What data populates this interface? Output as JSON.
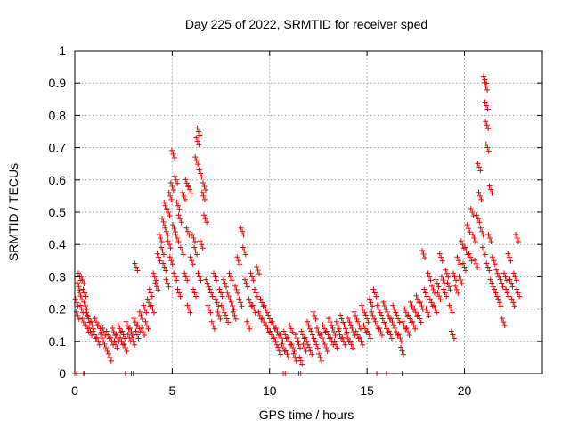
{
  "chart_data": {
    "type": "scatter",
    "title": "Day 225 of 2022, SRMTID for receiver sped",
    "xlabel": "GPS time / hours",
    "ylabel": "SRMTID / TECUs",
    "xlim": [
      0,
      24
    ],
    "ylim": [
      0,
      1
    ],
    "xticks": [
      0,
      5,
      10,
      15,
      20
    ],
    "xtick_labels": [
      "0",
      "5",
      "10",
      "15",
      "20"
    ],
    "yticks": [
      0,
      0.1,
      0.2,
      0.3,
      0.4,
      0.5,
      0.6,
      0.7,
      0.8,
      0.9,
      1
    ],
    "ytick_labels": [
      "0",
      "0.1",
      "0.2",
      "0.3",
      "0.4",
      "0.5",
      "0.6",
      "0.7",
      "0.8",
      "0.9",
      "1"
    ],
    "grid": true,
    "marker": "+",
    "color": "#e00000",
    "series": [
      {
        "name": "SRMTID",
        "points": [
          [
            0.1,
            0.22
          ],
          [
            0.15,
            0.18
          ],
          [
            0.2,
            0.27
          ],
          [
            0.25,
            0.3
          ],
          [
            0.3,
            0.24
          ],
          [
            0.35,
            0.2
          ],
          [
            0.4,
            0.29
          ],
          [
            0.45,
            0.16
          ],
          [
            0.5,
            0.25
          ],
          [
            0.55,
            0.21
          ],
          [
            0.6,
            0.19
          ],
          [
            0.65,
            0.14
          ],
          [
            0.7,
            0.17
          ],
          [
            0.8,
            0.13
          ],
          [
            0.9,
            0.15
          ],
          [
            1.0,
            0.12
          ],
          [
            1.1,
            0.16
          ],
          [
            1.2,
            0.1
          ],
          [
            1.3,
            0.14
          ],
          [
            1.4,
            0.11
          ],
          [
            1.5,
            0.13
          ],
          [
            1.6,
            0.08
          ],
          [
            1.7,
            0.12
          ],
          [
            1.8,
            0.05
          ],
          [
            1.9,
            0.1
          ],
          [
            2.0,
            0.13
          ],
          [
            2.1,
            0.09
          ],
          [
            2.2,
            0.11
          ],
          [
            2.3,
            0.14
          ],
          [
            2.4,
            0.1
          ],
          [
            2.5,
            0.12
          ],
          [
            2.6,
            0.08
          ],
          [
            2.7,
            0.15
          ],
          [
            2.8,
            0.11
          ],
          [
            2.9,
            0.13
          ],
          [
            3.0,
            0.1
          ],
          [
            3.1,
            0.16
          ],
          [
            3.15,
            0.33
          ],
          [
            3.2,
            0.12
          ],
          [
            3.3,
            0.14
          ],
          [
            3.4,
            0.18
          ],
          [
            3.5,
            0.13
          ],
          [
            3.6,
            0.2
          ],
          [
            3.7,
            0.15
          ],
          [
            3.8,
            0.22
          ],
          [
            3.9,
            0.25
          ],
          [
            4.0,
            0.2
          ],
          [
            4.1,
            0.3
          ],
          [
            4.2,
            0.27
          ],
          [
            4.3,
            0.36
          ],
          [
            4.4,
            0.42
          ],
          [
            4.5,
            0.38
          ],
          [
            4.55,
            0.47
          ],
          [
            4.6,
            0.33
          ],
          [
            4.65,
            0.52
          ],
          [
            4.7,
            0.44
          ],
          [
            4.75,
            0.28
          ],
          [
            4.8,
            0.5
          ],
          [
            4.85,
            0.4
          ],
          [
            4.9,
            0.55
          ],
          [
            4.95,
            0.35
          ],
          [
            5.0,
            0.58
          ],
          [
            5.05,
            0.68
          ],
          [
            5.1,
            0.45
          ],
          [
            5.15,
            0.3
          ],
          [
            5.2,
            0.6
          ],
          [
            5.25,
            0.42
          ],
          [
            5.3,
            0.52
          ],
          [
            5.35,
            0.25
          ],
          [
            5.4,
            0.48
          ],
          [
            5.5,
            0.38
          ],
          [
            5.6,
            0.55
          ],
          [
            5.7,
            0.3
          ],
          [
            5.75,
            0.59
          ],
          [
            5.8,
            0.44
          ],
          [
            5.85,
            0.2
          ],
          [
            5.9,
            0.57
          ],
          [
            6.0,
            0.35
          ],
          [
            6.1,
            0.42
          ],
          [
            6.15,
            0.25
          ],
          [
            6.2,
            0.38
          ],
          [
            6.25,
            0.66
          ],
          [
            6.3,
            0.72
          ],
          [
            6.35,
            0.75
          ],
          [
            6.4,
            0.3
          ],
          [
            6.45,
            0.62
          ],
          [
            6.5,
            0.4
          ],
          [
            6.6,
            0.55
          ],
          [
            6.65,
            0.58
          ],
          [
            6.7,
            0.48
          ],
          [
            6.8,
            0.28
          ],
          [
            6.9,
            0.2
          ],
          [
            7.0,
            0.25
          ],
          [
            7.1,
            0.15
          ],
          [
            7.2,
            0.3
          ],
          [
            7.3,
            0.22
          ],
          [
            7.4,
            0.18
          ],
          [
            7.5,
            0.25
          ],
          [
            7.6,
            0.2
          ],
          [
            7.7,
            0.28
          ],
          [
            7.8,
            0.17
          ],
          [
            7.9,
            0.24
          ],
          [
            8.0,
            0.3
          ],
          [
            8.1,
            0.21
          ],
          [
            8.2,
            0.18
          ],
          [
            8.3,
            0.26
          ],
          [
            8.4,
            0.35
          ],
          [
            8.5,
            0.22
          ],
          [
            8.6,
            0.44
          ],
          [
            8.7,
            0.38
          ],
          [
            8.8,
            0.28
          ],
          [
            8.9,
            0.15
          ],
          [
            9.0,
            0.22
          ],
          [
            9.1,
            0.3
          ],
          [
            9.2,
            0.2
          ],
          [
            9.3,
            0.25
          ],
          [
            9.4,
            0.32
          ],
          [
            9.5,
            0.18
          ],
          [
            9.6,
            0.22
          ],
          [
            9.7,
            0.16
          ],
          [
            9.8,
            0.2
          ],
          [
            9.9,
            0.14
          ],
          [
            10.0,
            0.17
          ],
          [
            10.1,
            0.12
          ],
          [
            10.2,
            0.15
          ],
          [
            10.3,
            0.1
          ],
          [
            10.4,
            0.13
          ],
          [
            10.5,
            0.07
          ],
          [
            10.6,
            0.11
          ],
          [
            10.7,
            0.08
          ],
          [
            10.8,
            0.12
          ],
          [
            10.9,
            0.06
          ],
          [
            11.0,
            0.1
          ],
          [
            11.1,
            0.14
          ],
          [
            11.2,
            0.08
          ],
          [
            11.3,
            0.05
          ],
          [
            11.4,
            0.11
          ],
          [
            11.5,
            0.09
          ],
          [
            11.6,
            0.04
          ],
          [
            11.7,
            0.12
          ],
          [
            11.8,
            0.08
          ],
          [
            11.9,
            0.1
          ],
          [
            12.0,
            0.15
          ],
          [
            12.1,
            0.07
          ],
          [
            12.2,
            0.12
          ],
          [
            12.3,
            0.18
          ],
          [
            12.4,
            0.09
          ],
          [
            12.5,
            0.13
          ],
          [
            12.6,
            0.05
          ],
          [
            12.7,
            0.11
          ],
          [
            12.8,
            0.14
          ],
          [
            12.9,
            0.08
          ],
          [
            13.0,
            0.12
          ],
          [
            13.1,
            0.16
          ],
          [
            13.2,
            0.1
          ],
          [
            13.3,
            0.13
          ],
          [
            13.4,
            0.09
          ],
          [
            13.5,
            0.15
          ],
          [
            13.6,
            0.12
          ],
          [
            13.7,
            0.17
          ],
          [
            13.8,
            0.1
          ],
          [
            13.9,
            0.14
          ],
          [
            14.0,
            0.11
          ],
          [
            14.1,
            0.16
          ],
          [
            14.2,
            0.09
          ],
          [
            14.3,
            0.13
          ],
          [
            14.4,
            0.18
          ],
          [
            14.5,
            0.12
          ],
          [
            14.6,
            0.15
          ],
          [
            14.7,
            0.1
          ],
          [
            14.8,
            0.2
          ],
          [
            14.9,
            0.14
          ],
          [
            15.0,
            0.17
          ],
          [
            15.1,
            0.12
          ],
          [
            15.2,
            0.22
          ],
          [
            15.3,
            0.18
          ],
          [
            15.4,
            0.25
          ],
          [
            15.5,
            0.15
          ],
          [
            15.6,
            0.2
          ],
          [
            15.7,
            0.13
          ],
          [
            15.8,
            0.17
          ],
          [
            15.9,
            0.21
          ],
          [
            16.0,
            0.14
          ],
          [
            16.1,
            0.18
          ],
          [
            16.2,
            0.12
          ],
          [
            16.3,
            0.16
          ],
          [
            16.4,
            0.2
          ],
          [
            16.5,
            0.13
          ],
          [
            16.6,
            0.17
          ],
          [
            16.7,
            0.11
          ],
          [
            16.8,
            0.07
          ],
          [
            16.9,
            0.15
          ],
          [
            17.0,
            0.19
          ],
          [
            17.1,
            0.13
          ],
          [
            17.2,
            0.17
          ],
          [
            17.3,
            0.21
          ],
          [
            17.4,
            0.15
          ],
          [
            17.5,
            0.19
          ],
          [
            17.6,
            0.23
          ],
          [
            17.7,
            0.17
          ],
          [
            17.8,
            0.21
          ],
          [
            17.9,
            0.37
          ],
          [
            18.0,
            0.25
          ],
          [
            18.1,
            0.19
          ],
          [
            18.2,
            0.3
          ],
          [
            18.3,
            0.22
          ],
          [
            18.4,
            0.26
          ],
          [
            18.5,
            0.2
          ],
          [
            18.6,
            0.28
          ],
          [
            18.7,
            0.24
          ],
          [
            18.8,
            0.36
          ],
          [
            18.9,
            0.29
          ],
          [
            19.0,
            0.25
          ],
          [
            19.1,
            0.31
          ],
          [
            19.2,
            0.27
          ],
          [
            19.3,
            0.2
          ],
          [
            19.4,
            0.12
          ],
          [
            19.5,
            0.3
          ],
          [
            19.6,
            0.26
          ],
          [
            19.7,
            0.35
          ],
          [
            19.8,
            0.29
          ],
          [
            19.9,
            0.4
          ],
          [
            20.0,
            0.33
          ],
          [
            20.1,
            0.38
          ],
          [
            20.2,
            0.45
          ],
          [
            20.3,
            0.36
          ],
          [
            20.4,
            0.5
          ],
          [
            20.5,
            0.42
          ],
          [
            20.6,
            0.34
          ],
          [
            20.7,
            0.48
          ],
          [
            20.75,
            0.64
          ],
          [
            20.8,
            0.55
          ],
          [
            20.9,
            0.44
          ],
          [
            21.0,
            0.38
          ],
          [
            21.05,
            0.91
          ],
          [
            21.1,
            0.89
          ],
          [
            21.12,
            0.83
          ],
          [
            21.15,
            0.77
          ],
          [
            21.18,
            0.7
          ],
          [
            21.2,
            0.33
          ],
          [
            21.3,
            0.42
          ],
          [
            21.35,
            0.57
          ],
          [
            21.4,
            0.28
          ],
          [
            21.5,
            0.35
          ],
          [
            21.6,
            0.25
          ],
          [
            21.7,
            0.31
          ],
          [
            21.8,
            0.22
          ],
          [
            21.9,
            0.28
          ],
          [
            22.0,
            0.16
          ],
          [
            22.1,
            0.3
          ],
          [
            22.2,
            0.25
          ],
          [
            22.3,
            0.36
          ],
          [
            22.4,
            0.28
          ],
          [
            22.5,
            0.22
          ],
          [
            22.6,
            0.3
          ],
          [
            22.7,
            0.42
          ],
          [
            22.75,
            0.25
          ]
        ]
      }
    ],
    "zero_markers": [
      0.0,
      0.1,
      0.45,
      0.5,
      2.6,
      2.9,
      3.0,
      10.7,
      10.8,
      11.5,
      11.6,
      15.5,
      16.0,
      16.8
    ]
  }
}
